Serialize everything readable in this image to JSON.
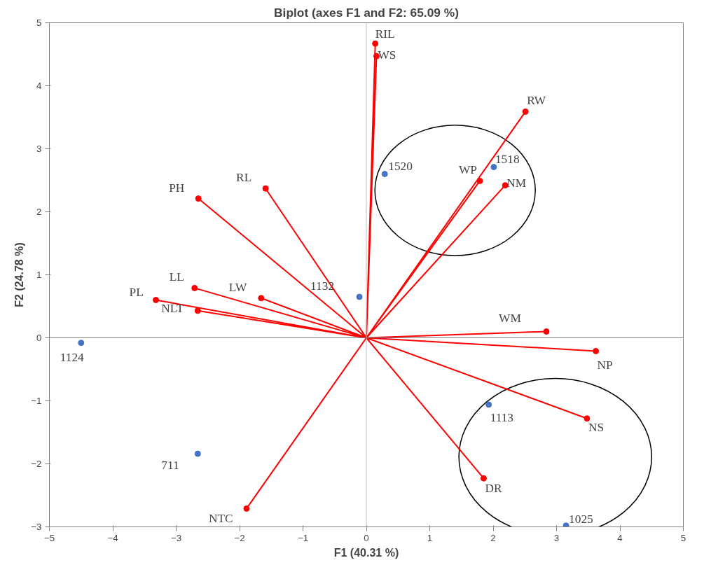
{
  "chart_data": {
    "type": "scatter",
    "title": "Biplot (axes F1 and F2: 65.09 %)",
    "xlabel": "F1 (40.31 %)",
    "ylabel": "F2 (24.78 %)",
    "xlim": [
      -5,
      5
    ],
    "ylim": [
      -3,
      5
    ],
    "xticks": [
      -5,
      -4,
      -3,
      -2,
      -1,
      0,
      1,
      2,
      3,
      4,
      5
    ],
    "yticks": [
      -3,
      -2,
      -1,
      0,
      1,
      2,
      3,
      4,
      5
    ],
    "grid": false,
    "marker": "circle",
    "ref_lines": [
      {
        "axis": "x",
        "value": 0,
        "color": "#bfbfbf"
      },
      {
        "axis": "y",
        "value": 0,
        "color": "#808080"
      }
    ],
    "series": [
      {
        "color": "#ff0000",
        "x": [
          0.14,
          0.16,
          2.51,
          1.79,
          2.19,
          -2.65,
          -1.59,
          -2.71,
          -1.66,
          -3.32,
          -2.66,
          2.84,
          3.62,
          3.48,
          1.85,
          -1.89
        ],
        "values": [
          4.67,
          4.47,
          3.59,
          2.49,
          2.42,
          2.21,
          2.37,
          0.79,
          0.63,
          0.6,
          0.43,
          0.1,
          -0.21,
          -1.28,
          -2.23,
          -2.71
        ]
      },
      {
        "color": "#4472c4",
        "x": [
          0.29,
          2.01,
          -0.11,
          -4.5,
          1.93,
          -2.66,
          3.15
        ],
        "values": [
          2.6,
          2.71,
          0.65,
          -0.08,
          -1.06,
          -1.84,
          -2.98
        ]
      },
      {
        "type": "line",
        "color": "#ff0000",
        "marker": "none",
        "x": [
          0,
          0.14,
          null,
          0,
          0.16,
          null,
          0,
          2.51,
          null,
          0,
          1.79,
          null,
          0,
          2.19,
          null,
          0,
          -2.65,
          null,
          0,
          -1.59,
          null,
          0,
          -2.71,
          null,
          0,
          -1.66,
          null,
          0,
          -3.32,
          null,
          0,
          -2.66,
          null,
          0,
          2.84,
          null,
          0,
          3.62,
          null,
          0,
          3.48,
          null,
          0,
          1.85,
          null,
          0,
          -1.89
        ],
        "values": [
          0,
          4.67,
          null,
          0,
          4.47,
          null,
          0,
          3.59,
          null,
          0,
          2.49,
          null,
          0,
          2.42,
          null,
          0,
          2.21,
          null,
          0,
          2.37,
          null,
          0,
          0.79,
          null,
          0,
          0.63,
          null,
          0,
          0.6,
          null,
          0,
          0.43,
          null,
          0,
          0.1,
          null,
          0,
          -0.21,
          null,
          0,
          -1.28,
          null,
          0,
          -2.23,
          null,
          0,
          -2.71
        ]
      }
    ],
    "annotations": [
      {
        "text": "RIL",
        "x": 0.14,
        "y": 4.67
      },
      {
        "text": "WS",
        "x": 0.16,
        "y": 4.47
      },
      {
        "text": "RW",
        "x": 2.51,
        "y": 3.59
      },
      {
        "text": "WP",
        "x": 1.79,
        "y": 2.49
      },
      {
        "text": "NM",
        "x": 2.19,
        "y": 2.42
      },
      {
        "text": "PH",
        "x": -2.65,
        "y": 2.21
      },
      {
        "text": "RL",
        "x": -1.59,
        "y": 2.37
      },
      {
        "text": "LL",
        "x": -2.71,
        "y": 0.79
      },
      {
        "text": "LW",
        "x": -1.66,
        "y": 0.63
      },
      {
        "text": "PL",
        "x": -3.32,
        "y": 0.6
      },
      {
        "text": "NLT",
        "x": -2.66,
        "y": 0.43
      },
      {
        "text": "WM",
        "x": 2.84,
        "y": 0.1
      },
      {
        "text": "NP",
        "x": 3.62,
        "y": -0.21
      },
      {
        "text": "NS",
        "x": 3.48,
        "y": -1.28
      },
      {
        "text": "DR",
        "x": 1.85,
        "y": -2.23
      },
      {
        "text": "NTC",
        "x": -1.89,
        "y": -2.71
      },
      {
        "text": "1520",
        "x": 0.29,
        "y": 2.6
      },
      {
        "text": "1518",
        "x": 2.01,
        "y": 2.71
      },
      {
        "text": "1132",
        "x": -0.11,
        "y": 0.65
      },
      {
        "text": "1124",
        "x": -4.5,
        "y": -0.08
      },
      {
        "text": "1113",
        "x": 1.93,
        "y": -1.06
      },
      {
        "text": "711",
        "x": -2.66,
        "y": -1.84
      },
      {
        "text": "1025",
        "x": 3.15,
        "y": -2.98
      }
    ]
  }
}
